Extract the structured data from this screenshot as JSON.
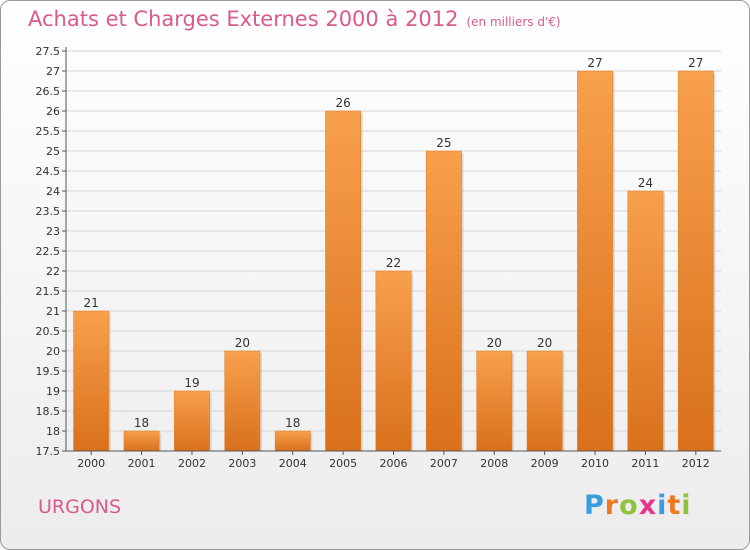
{
  "chart_data": {
    "type": "bar",
    "title": "Achats et Charges Externes 2000 à 2012",
    "unit": "(en milliers d'€)",
    "categories": [
      "2000",
      "2001",
      "2002",
      "2003",
      "2004",
      "2005",
      "2006",
      "2007",
      "2008",
      "2009",
      "2010",
      "2011",
      "2012"
    ],
    "values": [
      21,
      18,
      19,
      20,
      18,
      26,
      22,
      25,
      20,
      20,
      27,
      24,
      27
    ],
    "value_labels": [
      "21",
      "18",
      "19",
      "20",
      "18",
      "26",
      "22",
      "25",
      "20",
      "20",
      "27",
      "24",
      "27"
    ],
    "y_ticks": [
      "17.5",
      "18",
      "18.5",
      "19",
      "19.5",
      "20",
      "20.5",
      "21",
      "21.5",
      "22",
      "22.5",
      "23",
      "23.5",
      "24",
      "24.5",
      "25",
      "25.5",
      "26",
      "26.5",
      "27",
      "27.5"
    ],
    "ylim": [
      17.5,
      27.5
    ],
    "xlabel": "",
    "ylabel": "",
    "grid": true,
    "colors": {
      "bar_top": "#f8a04c",
      "bar_bottom": "#d9701c",
      "title": "#d85a8e"
    }
  },
  "footer": {
    "commune": "URGONS",
    "logo_letters": [
      "P",
      "r",
      "o",
      "x",
      "i",
      "t",
      "i"
    ],
    "logo_colors": [
      "#3a9de0",
      "#f07820",
      "#8fc33c",
      "#e8368f",
      "#3a9de0",
      "#f07820",
      "#8fc33c"
    ]
  }
}
